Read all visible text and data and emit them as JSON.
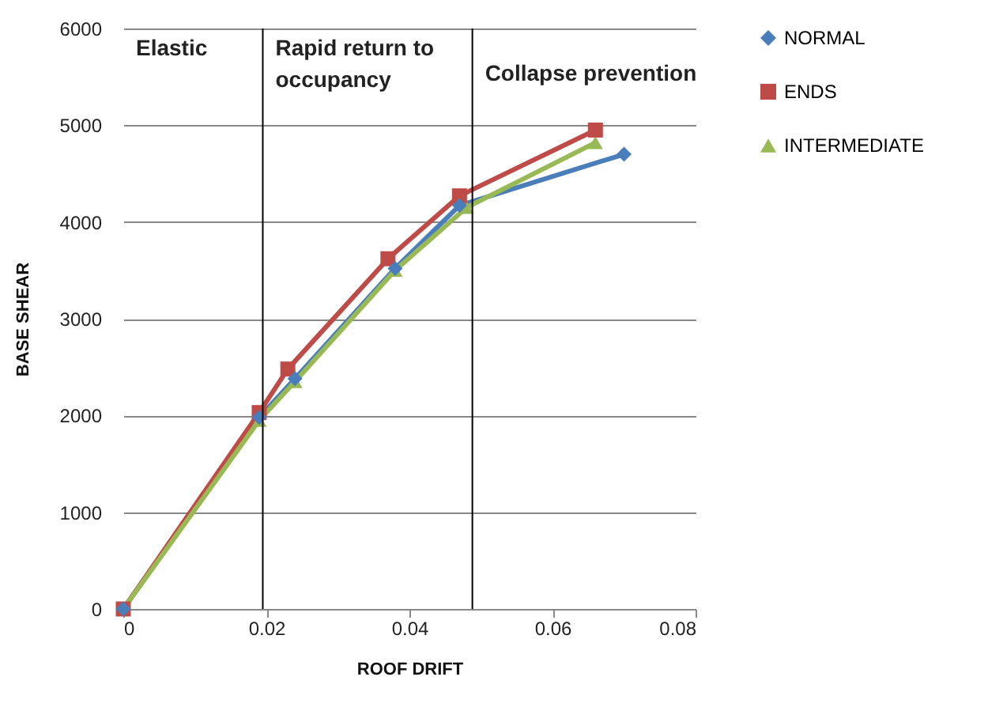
{
  "chart_data": {
    "type": "line",
    "xlabel": "ROOF DRIFT",
    "ylabel": "BASE SHEAR",
    "xlim": [
      0,
      0.08
    ],
    "xticks": [
      0,
      0.02,
      0.04,
      0.06,
      0.08
    ],
    "ylim": [
      0,
      6000
    ],
    "yticks": [
      0,
      1000,
      2000,
      3000,
      4000,
      5000,
      6000
    ],
    "grid": "y",
    "legend": "right",
    "line_style": "solid",
    "series": [
      {
        "name": "NORMAL",
        "color": "#4a7ebb",
        "marker": "diamond",
        "x": [
          0,
          0.019,
          0.024,
          0.038,
          0.047,
          0.07
        ],
        "values": [
          0,
          1980,
          2380,
          3520,
          4170,
          4700
        ]
      },
      {
        "name": "ENDS",
        "color": "#be4b48",
        "marker": "square",
        "x": [
          0,
          0.019,
          0.023,
          0.037,
          0.047,
          0.066
        ],
        "values": [
          0,
          2030,
          2480,
          3620,
          4270,
          4950
        ]
      },
      {
        "name": "INTERMEDIATE",
        "color": "#98b954",
        "marker": "triangle",
        "x": [
          0,
          0.019,
          0.024,
          0.038,
          0.048,
          0.066
        ],
        "values": [
          0,
          1950,
          2350,
          3500,
          4150,
          4820
        ]
      }
    ],
    "ref_lines": [
      {
        "axis": "x",
        "value": 0.0195,
        "color": "#000000"
      },
      {
        "axis": "x",
        "value": 0.0488,
        "color": "#000000"
      }
    ],
    "annotations": [
      "Elastic",
      "Rapid return to occupancy",
      "Collapse prevention"
    ]
  }
}
